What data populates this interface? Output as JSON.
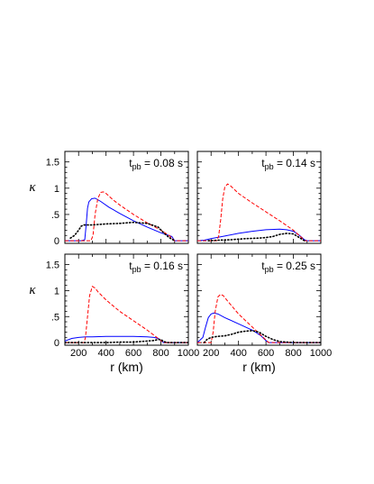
{
  "colors": {
    "blue_solid": "#0000ff",
    "red_dashed": "#ff0000",
    "black_dotted": "#000000",
    "frame": "#000000"
  },
  "chart_data": [
    {
      "type": "line",
      "panel": "top-left",
      "annotation": {
        "main": "t",
        "sub": "pb",
        "value": " = 0.08 s"
      },
      "ylabel": "κ",
      "xlim": [
        100,
        1000
      ],
      "ylim": [
        -0.05,
        1.7
      ],
      "xticks": [
        100,
        200,
        300,
        400,
        500,
        600,
        700,
        800,
        900,
        1000
      ],
      "xtick_labels": [],
      "yticks": [
        0,
        0.5,
        1,
        1.5
      ],
      "ytick_labels": [
        "0",
        ".5",
        "1",
        "1.5"
      ],
      "series": [
        {
          "style": "solid",
          "color": "blue",
          "x": [
            100,
            220,
            245,
            255,
            265,
            275,
            295,
            320,
            360,
            420,
            500,
            600,
            700,
            800,
            880,
            900,
            1000
          ],
          "y": [
            0,
            0,
            0.02,
            0.3,
            0.62,
            0.74,
            0.8,
            0.81,
            0.75,
            0.64,
            0.52,
            0.38,
            0.26,
            0.15,
            0.08,
            0,
            0
          ]
        },
        {
          "style": "dashed",
          "color": "red",
          "x": [
            100,
            290,
            305,
            320,
            340,
            360,
            380,
            400,
            450,
            500,
            600,
            700,
            800,
            860,
            900,
            1000
          ],
          "y": [
            0,
            0,
            0.1,
            0.5,
            0.8,
            0.92,
            0.93,
            0.9,
            0.78,
            0.68,
            0.5,
            0.34,
            0.2,
            0.1,
            0,
            0
          ]
        },
        {
          "style": "dotted",
          "color": "black",
          "x": [
            140,
            170,
            200,
            220,
            240,
            260,
            300,
            400,
            500,
            600,
            700,
            780,
            820,
            860,
            900
          ],
          "y": [
            0.05,
            0.1,
            0.2,
            0.28,
            0.3,
            0.3,
            0.3,
            0.32,
            0.33,
            0.35,
            0.33,
            0.26,
            0.15,
            0.06,
            0
          ]
        }
      ]
    },
    {
      "type": "line",
      "panel": "top-right",
      "annotation": {
        "main": "t",
        "sub": "pb",
        "value": " = 0.14 s"
      },
      "xlim": [
        100,
        1000
      ],
      "ylim": [
        -0.05,
        1.7
      ],
      "xticks": [
        100,
        200,
        300,
        400,
        500,
        600,
        700,
        800,
        900,
        1000
      ],
      "xtick_labels": [],
      "yticks": [
        0,
        0.5,
        1,
        1.5
      ],
      "ytick_labels": [],
      "series": [
        {
          "style": "solid",
          "color": "blue",
          "x": [
            100,
            150,
            200,
            300,
            400,
            500,
            600,
            700,
            750,
            800,
            840,
            880,
            900,
            1000
          ],
          "y": [
            0,
            0.01,
            0.04,
            0.09,
            0.14,
            0.18,
            0.21,
            0.22,
            0.21,
            0.18,
            0.11,
            0.02,
            0,
            0
          ]
        },
        {
          "style": "dashed",
          "color": "red",
          "x": [
            100,
            240,
            255,
            270,
            285,
            300,
            320,
            340,
            360,
            400,
            500,
            600,
            700,
            800,
            860,
            880,
            1000
          ],
          "y": [
            0,
            0,
            0.08,
            0.4,
            0.8,
            1.02,
            1.08,
            1.05,
            1.0,
            0.9,
            0.72,
            0.55,
            0.38,
            0.2,
            0.06,
            0,
            0
          ]
        },
        {
          "style": "dotted",
          "color": "black",
          "x": [
            180,
            250,
            350,
            450,
            550,
            600,
            650,
            700,
            750,
            800,
            850,
            880
          ],
          "y": [
            0,
            0.01,
            0.02,
            0.04,
            0.05,
            0.06,
            0.08,
            0.12,
            0.14,
            0.13,
            0.05,
            0
          ]
        }
      ]
    },
    {
      "type": "line",
      "panel": "bottom-left",
      "annotation": {
        "main": "t",
        "sub": "pb",
        "value": " = 0.16 s"
      },
      "ylabel": "κ",
      "xlabel": "r (km)",
      "xlim": [
        100,
        1000
      ],
      "ylim": [
        -0.05,
        1.7
      ],
      "xticks": [
        100,
        200,
        300,
        400,
        500,
        600,
        700,
        800,
        900,
        1000
      ],
      "xtick_labels": [
        "",
        "200",
        "",
        "400",
        "",
        "600",
        "",
        "800",
        "",
        "1000"
      ],
      "yticks": [
        0,
        0.5,
        1,
        1.5
      ],
      "ytick_labels": [
        "0",
        ".5",
        "1",
        "1.5"
      ],
      "series": [
        {
          "style": "solid",
          "color": "blue",
          "x": [
            100,
            150,
            200,
            250,
            300,
            400,
            500,
            600,
            700,
            750,
            780,
            800,
            820,
            1000
          ],
          "y": [
            0.03,
            0.08,
            0.1,
            0.11,
            0.11,
            0.12,
            0.12,
            0.12,
            0.11,
            0.1,
            0.08,
            0.04,
            0,
            0
          ]
        },
        {
          "style": "dashed",
          "color": "red",
          "x": [
            100,
            240,
            250,
            265,
            280,
            300,
            320,
            340,
            400,
            500,
            600,
            700,
            780,
            820,
            1000
          ],
          "y": [
            0,
            0,
            0.1,
            0.5,
            0.9,
            1.08,
            1.05,
            0.98,
            0.82,
            0.6,
            0.42,
            0.24,
            0.08,
            0,
            0
          ]
        },
        {
          "style": "dotted",
          "color": "black",
          "x": [
            100,
            200,
            300,
            400,
            500,
            600,
            650,
            700,
            750,
            780,
            800,
            820,
            850,
            900,
            1000
          ],
          "y": [
            0,
            0,
            0,
            0,
            0.01,
            0.01,
            0.02,
            0.03,
            0.04,
            0.06,
            0.06,
            0.02,
            0,
            0,
            0
          ]
        }
      ]
    },
    {
      "type": "line",
      "panel": "bottom-right",
      "annotation": {
        "main": "t",
        "sub": "pb",
        "value": " = 0.25 s"
      },
      "xlabel": "r (km)",
      "xlim": [
        100,
        1000
      ],
      "ylim": [
        -0.05,
        1.7
      ],
      "xticks": [
        100,
        200,
        300,
        400,
        500,
        600,
        700,
        800,
        900,
        1000
      ],
      "xtick_labels": [
        "",
        "200",
        "",
        "400",
        "",
        "600",
        "",
        "800",
        "",
        "1000"
      ],
      "yticks": [
        0,
        0.5,
        1,
        1.5
      ],
      "ytick_labels": [],
      "series": [
        {
          "style": "solid",
          "color": "blue",
          "x": [
            100,
            140,
            160,
            180,
            200,
            220,
            250,
            300,
            400,
            500,
            560,
            600,
            620,
            1000
          ],
          "y": [
            0,
            0.1,
            0.3,
            0.48,
            0.55,
            0.57,
            0.55,
            0.48,
            0.36,
            0.24,
            0.14,
            0.04,
            0,
            0
          ]
        },
        {
          "style": "dashed",
          "color": "red",
          "x": [
            100,
            200,
            215,
            230,
            250,
            270,
            290,
            320,
            400,
            500,
            580,
            620,
            1000
          ],
          "y": [
            0,
            0,
            0.2,
            0.6,
            0.88,
            0.93,
            0.9,
            0.8,
            0.55,
            0.3,
            0.1,
            0,
            0
          ]
        },
        {
          "style": "dotted",
          "color": "black",
          "x": [
            150,
            170,
            200,
            250,
            300,
            350,
            400,
            450,
            500,
            550,
            600,
            650,
            700,
            800,
            900,
            1000
          ],
          "y": [
            0,
            0.06,
            0.1,
            0.12,
            0.13,
            0.16,
            0.2,
            0.22,
            0.23,
            0.2,
            0.12,
            0.06,
            0.02,
            0,
            0,
            0
          ]
        }
      ]
    }
  ]
}
